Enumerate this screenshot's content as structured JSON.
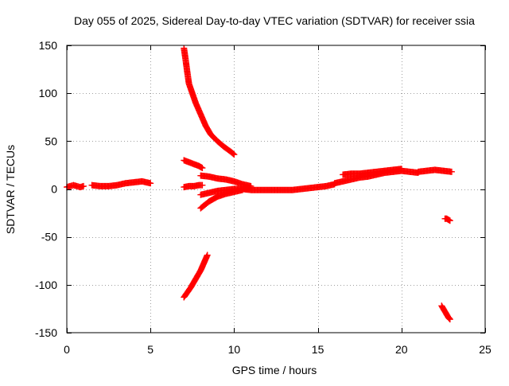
{
  "chart_data": {
    "type": "scatter",
    "title": "Day 055 of 2025, Sidereal Day-to-day VTEC variation (SDTVAR) for receiver ssia",
    "xlabel": "GPS time / hours",
    "ylabel": "SDTVAR / TECUs",
    "xlim": [
      0,
      25
    ],
    "ylim": [
      -150,
      150
    ],
    "xticks": [
      0,
      5,
      10,
      15,
      20,
      25
    ],
    "yticks": [
      -150,
      -100,
      -50,
      0,
      50,
      100,
      150
    ],
    "grid": true,
    "legend": "none",
    "marker": "plus",
    "color": "#ff0000",
    "series": [
      {
        "x": [
          0.0,
          0.2,
          0.4,
          0.6,
          0.8,
          1.0
        ],
        "y": [
          2,
          3,
          4,
          3,
          2,
          3
        ]
      },
      {
        "x": [
          1.5,
          2.0,
          2.5,
          3.0,
          3.5,
          4.0,
          4.5,
          5.0
        ],
        "y": [
          4,
          3,
          3,
          4,
          6,
          7,
          8,
          6
        ]
      },
      {
        "x": [
          7.0,
          7.1,
          7.2,
          7.3,
          7.5,
          7.7,
          8.0,
          8.3,
          8.6,
          9.0,
          9.4,
          9.8,
          10.0
        ],
        "y": [
          147,
          135,
          122,
          110,
          100,
          90,
          78,
          66,
          57,
          50,
          44,
          39,
          36
        ]
      },
      {
        "x": [
          7.0,
          7.3,
          7.6,
          7.9,
          8.1
        ],
        "y": [
          30,
          28,
          26,
          24,
          22
        ]
      },
      {
        "x": [
          7.0,
          7.3,
          7.6,
          7.9,
          8.1
        ],
        "y": [
          2,
          3,
          3,
          4,
          4
        ]
      },
      {
        "x": [
          8.0,
          8.5,
          9.0,
          9.5,
          10.0,
          10.5,
          11.0
        ],
        "y": [
          14,
          13,
          11,
          10,
          8,
          5,
          3
        ]
      },
      {
        "x": [
          8.0,
          8.5,
          9.0,
          9.5,
          10.0,
          10.5,
          11.0
        ],
        "y": [
          -6,
          -4,
          -2,
          -1,
          0,
          0,
          1
        ]
      },
      {
        "x": [
          8.0,
          8.5,
          9.0,
          9.5,
          10.0,
          10.5
        ],
        "y": [
          -20,
          -13,
          -8,
          -5,
          -3,
          -1
        ]
      },
      {
        "x": [
          7.0,
          7.2,
          7.4,
          7.6,
          7.8,
          8.0,
          8.2,
          8.4
        ],
        "y": [
          -113,
          -108,
          -103,
          -97,
          -91,
          -85,
          -77,
          -69
        ]
      },
      {
        "x": [
          10.5,
          11.0,
          11.5,
          12.0,
          12.5,
          13.0,
          13.5,
          14.0,
          14.5,
          15.0,
          15.5,
          16.0
        ],
        "y": [
          0,
          -1,
          -1,
          -1,
          -1,
          -1,
          -1,
          0,
          1,
          2,
          3,
          5
        ]
      },
      {
        "x": [
          16.0,
          16.5,
          17.0,
          17.5,
          18.0,
          18.5,
          19.0,
          19.5,
          20.0,
          20.5,
          21.0
        ],
        "y": [
          6,
          8,
          10,
          12,
          13,
          15,
          17,
          18,
          19,
          18,
          17
        ]
      },
      {
        "x": [
          16.5,
          17.0,
          17.5,
          18.0,
          18.5,
          19.0,
          19.5,
          20.0
        ],
        "y": [
          15,
          16,
          16,
          17,
          18,
          19,
          20,
          21
        ]
      },
      {
        "x": [
          21.0,
          21.5,
          22.0,
          22.5,
          23.0
        ],
        "y": [
          18,
          19,
          20,
          19,
          18
        ]
      },
      {
        "x": [
          22.6,
          22.7,
          22.8,
          22.9
        ],
        "y": [
          -31,
          -31,
          -32,
          -33
        ]
      },
      {
        "x": [
          22.4,
          22.5,
          22.6,
          22.7,
          22.8,
          22.9
        ],
        "y": [
          -122,
          -125,
          -128,
          -131,
          -134,
          -136
        ]
      }
    ]
  }
}
